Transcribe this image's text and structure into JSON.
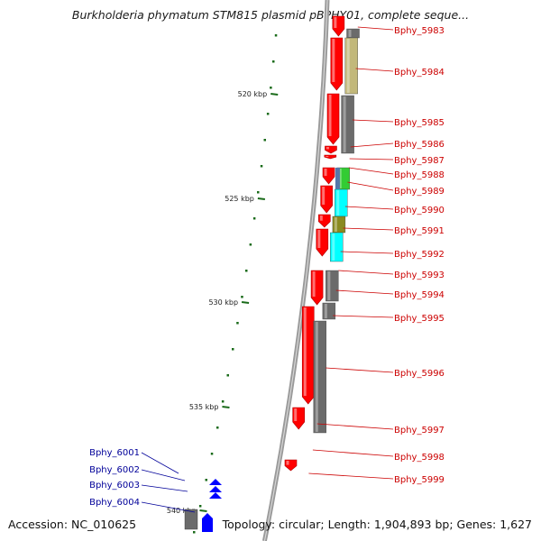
{
  "title": "Burkholderia phymatum STM815 plasmid pBPHY01, complete seque...",
  "accession": "Accession: NC_010625",
  "topology": "Topology: circular; Length: 1,904,893 bp; Genes: 1,627",
  "colors": {
    "forward_gene": "#ff0000",
    "reverse_gene": "#0000ff",
    "label_right": "#cc0000",
    "label_left": "#000099",
    "tick": "#1a6b1a",
    "backbone": "#999999",
    "cog_gray": "#6b6b6b",
    "cog_olive": "#c2b87a",
    "cog_cyan": "#00ffff",
    "cog_green": "#33cc33",
    "cog_steel": "#5577aa",
    "cog_dark_olive": "#8a8a20"
  },
  "scale_labels": [
    "520 kbp",
    "525 kbp",
    "530 kbp",
    "535 kbp",
    "540 kbp"
  ],
  "genes_right": [
    "Bphy_5983",
    "Bphy_5984",
    "Bphy_5985",
    "Bphy_5986",
    "Bphy_5987",
    "Bphy_5988",
    "Bphy_5989",
    "Bphy_5990",
    "Bphy_5991",
    "Bphy_5992",
    "Bphy_5993",
    "Bphy_5994",
    "Bphy_5995",
    "Bphy_5996",
    "Bphy_5997",
    "Bphy_5998",
    "Bphy_5999"
  ],
  "genes_left": [
    "Bphy_6001",
    "Bphy_6002",
    "Bphy_6003",
    "Bphy_6004"
  ]
}
